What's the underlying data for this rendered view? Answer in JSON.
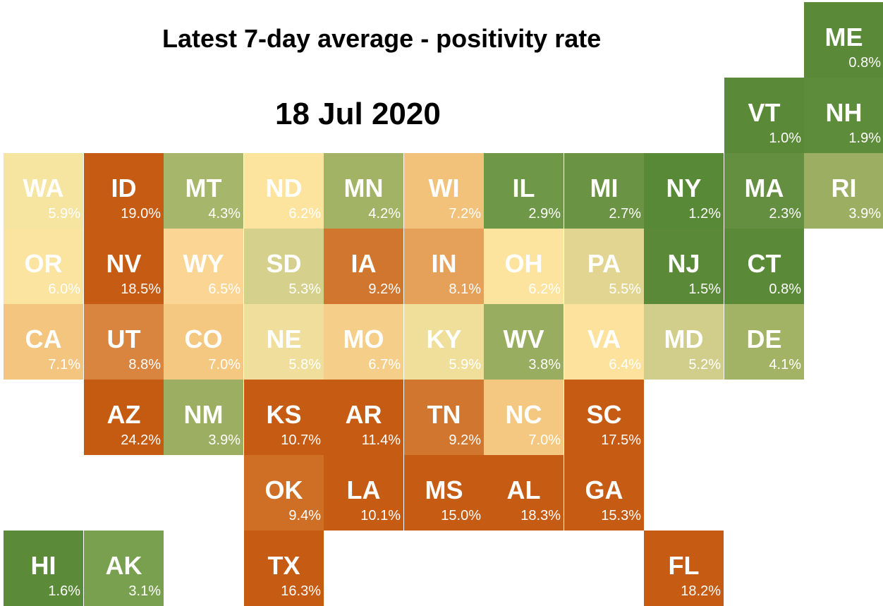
{
  "title": "Latest 7-day average - positivity rate",
  "date": "18 Jul 2020",
  "states": [
    {
      "abbr": "ME",
      "rate": "0.8%",
      "value": 0.8,
      "col": 10,
      "row": 0,
      "color": "#5a8a37"
    },
    {
      "abbr": "VT",
      "rate": "1.0%",
      "value": 1.0,
      "col": 9,
      "row": 1,
      "color": "#5a8a37"
    },
    {
      "abbr": "NH",
      "rate": "1.9%",
      "value": 1.9,
      "col": 10,
      "row": 1,
      "color": "#5d8c3a"
    },
    {
      "abbr": "WA",
      "rate": "5.9%",
      "value": 5.9,
      "col": 0,
      "row": 2,
      "color": "#f6e4a1"
    },
    {
      "abbr": "ID",
      "rate": "19.0%",
      "value": 19.0,
      "col": 1,
      "row": 2,
      "color": "#c65b13"
    },
    {
      "abbr": "MT",
      "rate": "4.3%",
      "value": 4.3,
      "col": 2,
      "row": 2,
      "color": "#a6b66b"
    },
    {
      "abbr": "ND",
      "rate": "6.2%",
      "value": 6.2,
      "col": 3,
      "row": 2,
      "color": "#fde49e"
    },
    {
      "abbr": "MN",
      "rate": "4.2%",
      "value": 4.2,
      "col": 4,
      "row": 2,
      "color": "#a2b365"
    },
    {
      "abbr": "WI",
      "rate": "7.2%",
      "value": 7.2,
      "col": 5,
      "row": 2,
      "color": "#f2c27a"
    },
    {
      "abbr": "IL",
      "rate": "2.9%",
      "value": 2.9,
      "col": 6,
      "row": 2,
      "color": "#6e9747"
    },
    {
      "abbr": "MI",
      "rate": "2.7%",
      "value": 2.7,
      "col": 7,
      "row": 2,
      "color": "#6a9443"
    },
    {
      "abbr": "NY",
      "rate": "1.2%",
      "value": 1.2,
      "col": 8,
      "row": 2,
      "color": "#588936"
    },
    {
      "abbr": "MA",
      "rate": "2.3%",
      "value": 2.3,
      "col": 9,
      "row": 2,
      "color": "#658f40"
    },
    {
      "abbr": "RI",
      "rate": "3.9%",
      "value": 3.9,
      "col": 10,
      "row": 2,
      "color": "#9cae62"
    },
    {
      "abbr": "OR",
      "rate": "6.0%",
      "value": 6.0,
      "col": 0,
      "row": 3,
      "color": "#fbe3a0"
    },
    {
      "abbr": "NV",
      "rate": "18.5%",
      "value": 18.5,
      "col": 1,
      "row": 3,
      "color": "#c65b13"
    },
    {
      "abbr": "WY",
      "rate": "6.5%",
      "value": 6.5,
      "col": 2,
      "row": 3,
      "color": "#fad594"
    },
    {
      "abbr": "SD",
      "rate": "5.3%",
      "value": 5.3,
      "col": 3,
      "row": 3,
      "color": "#d6d08d"
    },
    {
      "abbr": "IA",
      "rate": "9.2%",
      "value": 9.2,
      "col": 4,
      "row": 3,
      "color": "#d1762e"
    },
    {
      "abbr": "IN",
      "rate": "8.1%",
      "value": 8.1,
      "col": 5,
      "row": 3,
      "color": "#e5a05a"
    },
    {
      "abbr": "OH",
      "rate": "6.2%",
      "value": 6.2,
      "col": 6,
      "row": 3,
      "color": "#fde49e"
    },
    {
      "abbr": "PA",
      "rate": "5.5%",
      "value": 5.5,
      "col": 7,
      "row": 3,
      "color": "#e2d592"
    },
    {
      "abbr": "NJ",
      "rate": "1.5%",
      "value": 1.5,
      "col": 8,
      "row": 3,
      "color": "#5a8a37"
    },
    {
      "abbr": "CT",
      "rate": "0.8%",
      "value": 0.8,
      "col": 9,
      "row": 3,
      "color": "#5a8a37"
    },
    {
      "abbr": "CA",
      "rate": "7.1%",
      "value": 7.1,
      "col": 0,
      "row": 4,
      "color": "#f3c57e"
    },
    {
      "abbr": "UT",
      "rate": "8.8%",
      "value": 8.8,
      "col": 1,
      "row": 4,
      "color": "#d98540"
    },
    {
      "abbr": "CO",
      "rate": "7.0%",
      "value": 7.0,
      "col": 2,
      "row": 4,
      "color": "#f4c880"
    },
    {
      "abbr": "NE",
      "rate": "5.8%",
      "value": 5.8,
      "col": 3,
      "row": 4,
      "color": "#f0df9c"
    },
    {
      "abbr": "MO",
      "rate": "6.7%",
      "value": 6.7,
      "col": 4,
      "row": 4,
      "color": "#f5cf89"
    },
    {
      "abbr": "KY",
      "rate": "5.9%",
      "value": 5.9,
      "col": 5,
      "row": 4,
      "color": "#efdf9b"
    },
    {
      "abbr": "WV",
      "rate": "3.8%",
      "value": 3.8,
      "col": 6,
      "row": 4,
      "color": "#99ad60"
    },
    {
      "abbr": "VA",
      "rate": "6.4%",
      "value": 6.4,
      "col": 7,
      "row": 4,
      "color": "#fde29d"
    },
    {
      "abbr": "MD",
      "rate": "5.2%",
      "value": 5.2,
      "col": 8,
      "row": 4,
      "color": "#d1cd8a"
    },
    {
      "abbr": "DE",
      "rate": "4.1%",
      "value": 4.1,
      "col": 9,
      "row": 4,
      "color": "#a2b365"
    },
    {
      "abbr": "AZ",
      "rate": "24.2%",
      "value": 24.2,
      "col": 1,
      "row": 5,
      "color": "#c55a11"
    },
    {
      "abbr": "NM",
      "rate": "3.9%",
      "value": 3.9,
      "col": 2,
      "row": 5,
      "color": "#9cae62"
    },
    {
      "abbr": "KS",
      "rate": "10.7%",
      "value": 10.7,
      "col": 3,
      "row": 5,
      "color": "#c65b13"
    },
    {
      "abbr": "AR",
      "rate": "11.4%",
      "value": 11.4,
      "col": 4,
      "row": 5,
      "color": "#c65b13"
    },
    {
      "abbr": "TN",
      "rate": "9.2%",
      "value": 9.2,
      "col": 5,
      "row": 5,
      "color": "#d1762e"
    },
    {
      "abbr": "NC",
      "rate": "7.0%",
      "value": 7.0,
      "col": 6,
      "row": 5,
      "color": "#f4c880"
    },
    {
      "abbr": "SC",
      "rate": "17.5%",
      "value": 17.5,
      "col": 7,
      "row": 5,
      "color": "#c65b13"
    },
    {
      "abbr": "OK",
      "rate": "9.4%",
      "value": 9.4,
      "col": 3,
      "row": 6,
      "color": "#cf6f26"
    },
    {
      "abbr": "LA",
      "rate": "10.1%",
      "value": 10.1,
      "col": 4,
      "row": 6,
      "color": "#c65b13"
    },
    {
      "abbr": "MS",
      "rate": "15.0%",
      "value": 15.0,
      "col": 5,
      "row": 6,
      "color": "#c65b13"
    },
    {
      "abbr": "AL",
      "rate": "18.3%",
      "value": 18.3,
      "col": 6,
      "row": 6,
      "color": "#c65b13"
    },
    {
      "abbr": "GA",
      "rate": "15.3%",
      "value": 15.3,
      "col": 7,
      "row": 6,
      "color": "#c65b13"
    },
    {
      "abbr": "HI",
      "rate": "1.6%",
      "value": 1.6,
      "col": 0,
      "row": 7,
      "color": "#5b8b38"
    },
    {
      "abbr": "AK",
      "rate": "3.1%",
      "value": 3.1,
      "col": 1,
      "row": 7,
      "color": "#78a04f"
    },
    {
      "abbr": "TX",
      "rate": "16.3%",
      "value": 16.3,
      "col": 3,
      "row": 7,
      "color": "#c65b13"
    },
    {
      "abbr": "FL",
      "rate": "18.2%",
      "value": 18.2,
      "col": 8,
      "row": 7,
      "color": "#c65b13"
    }
  ]
}
